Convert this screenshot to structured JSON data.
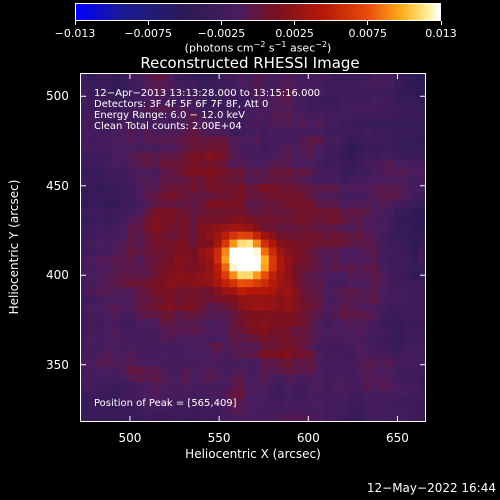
{
  "colorbar": {
    "ticks": [
      "−0.013",
      "−0.0075",
      "−0.0025",
      "0.0025",
      "0.0075",
      "0.013"
    ],
    "unit_pre": "(photons cm",
    "unit_sup1": "−2",
    "unit_mid": " s",
    "unit_sup2": "−1",
    "unit_mid2": " asec",
    "unit_sup3": "−2",
    "unit_post": ")",
    "colors": [
      "#0000ff",
      "#4a1c5e",
      "#b81808",
      "#ffb21e",
      "#ffffff"
    ]
  },
  "chart_data": {
    "type": "heatmap",
    "title": "Reconstructed RHESSI Image",
    "xlabel": "Heliocentric X (arcsec)",
    "ylabel": "Heliocentric Y (arcsec)",
    "xlim": [
      472,
      666
    ],
    "ylim": [
      318,
      513
    ],
    "x_ticks": [
      "500",
      "550",
      "600",
      "650"
    ],
    "y_ticks": [
      "500",
      "450",
      "400",
      "350"
    ],
    "x_tick_values": [
      500,
      550,
      600,
      650
    ],
    "y_tick_values": [
      500,
      450,
      400,
      350
    ],
    "value_range": [
      -0.013,
      0.013
    ],
    "peak": [
      565,
      409
    ],
    "annotations": [
      "12−Apr−2013 13:13:28.000 to 13:15:16.000",
      "Detectors: 3F 4F 5F 6F 7F 8F, Att 0",
      "Energy Range: 6.0 − 12.0 keV",
      "Clean    Total counts: 2.00E+04"
    ],
    "peak_label": "Position of Peak = [565,409]"
  },
  "footer": {
    "date": "12−May−2022 16:44"
  }
}
